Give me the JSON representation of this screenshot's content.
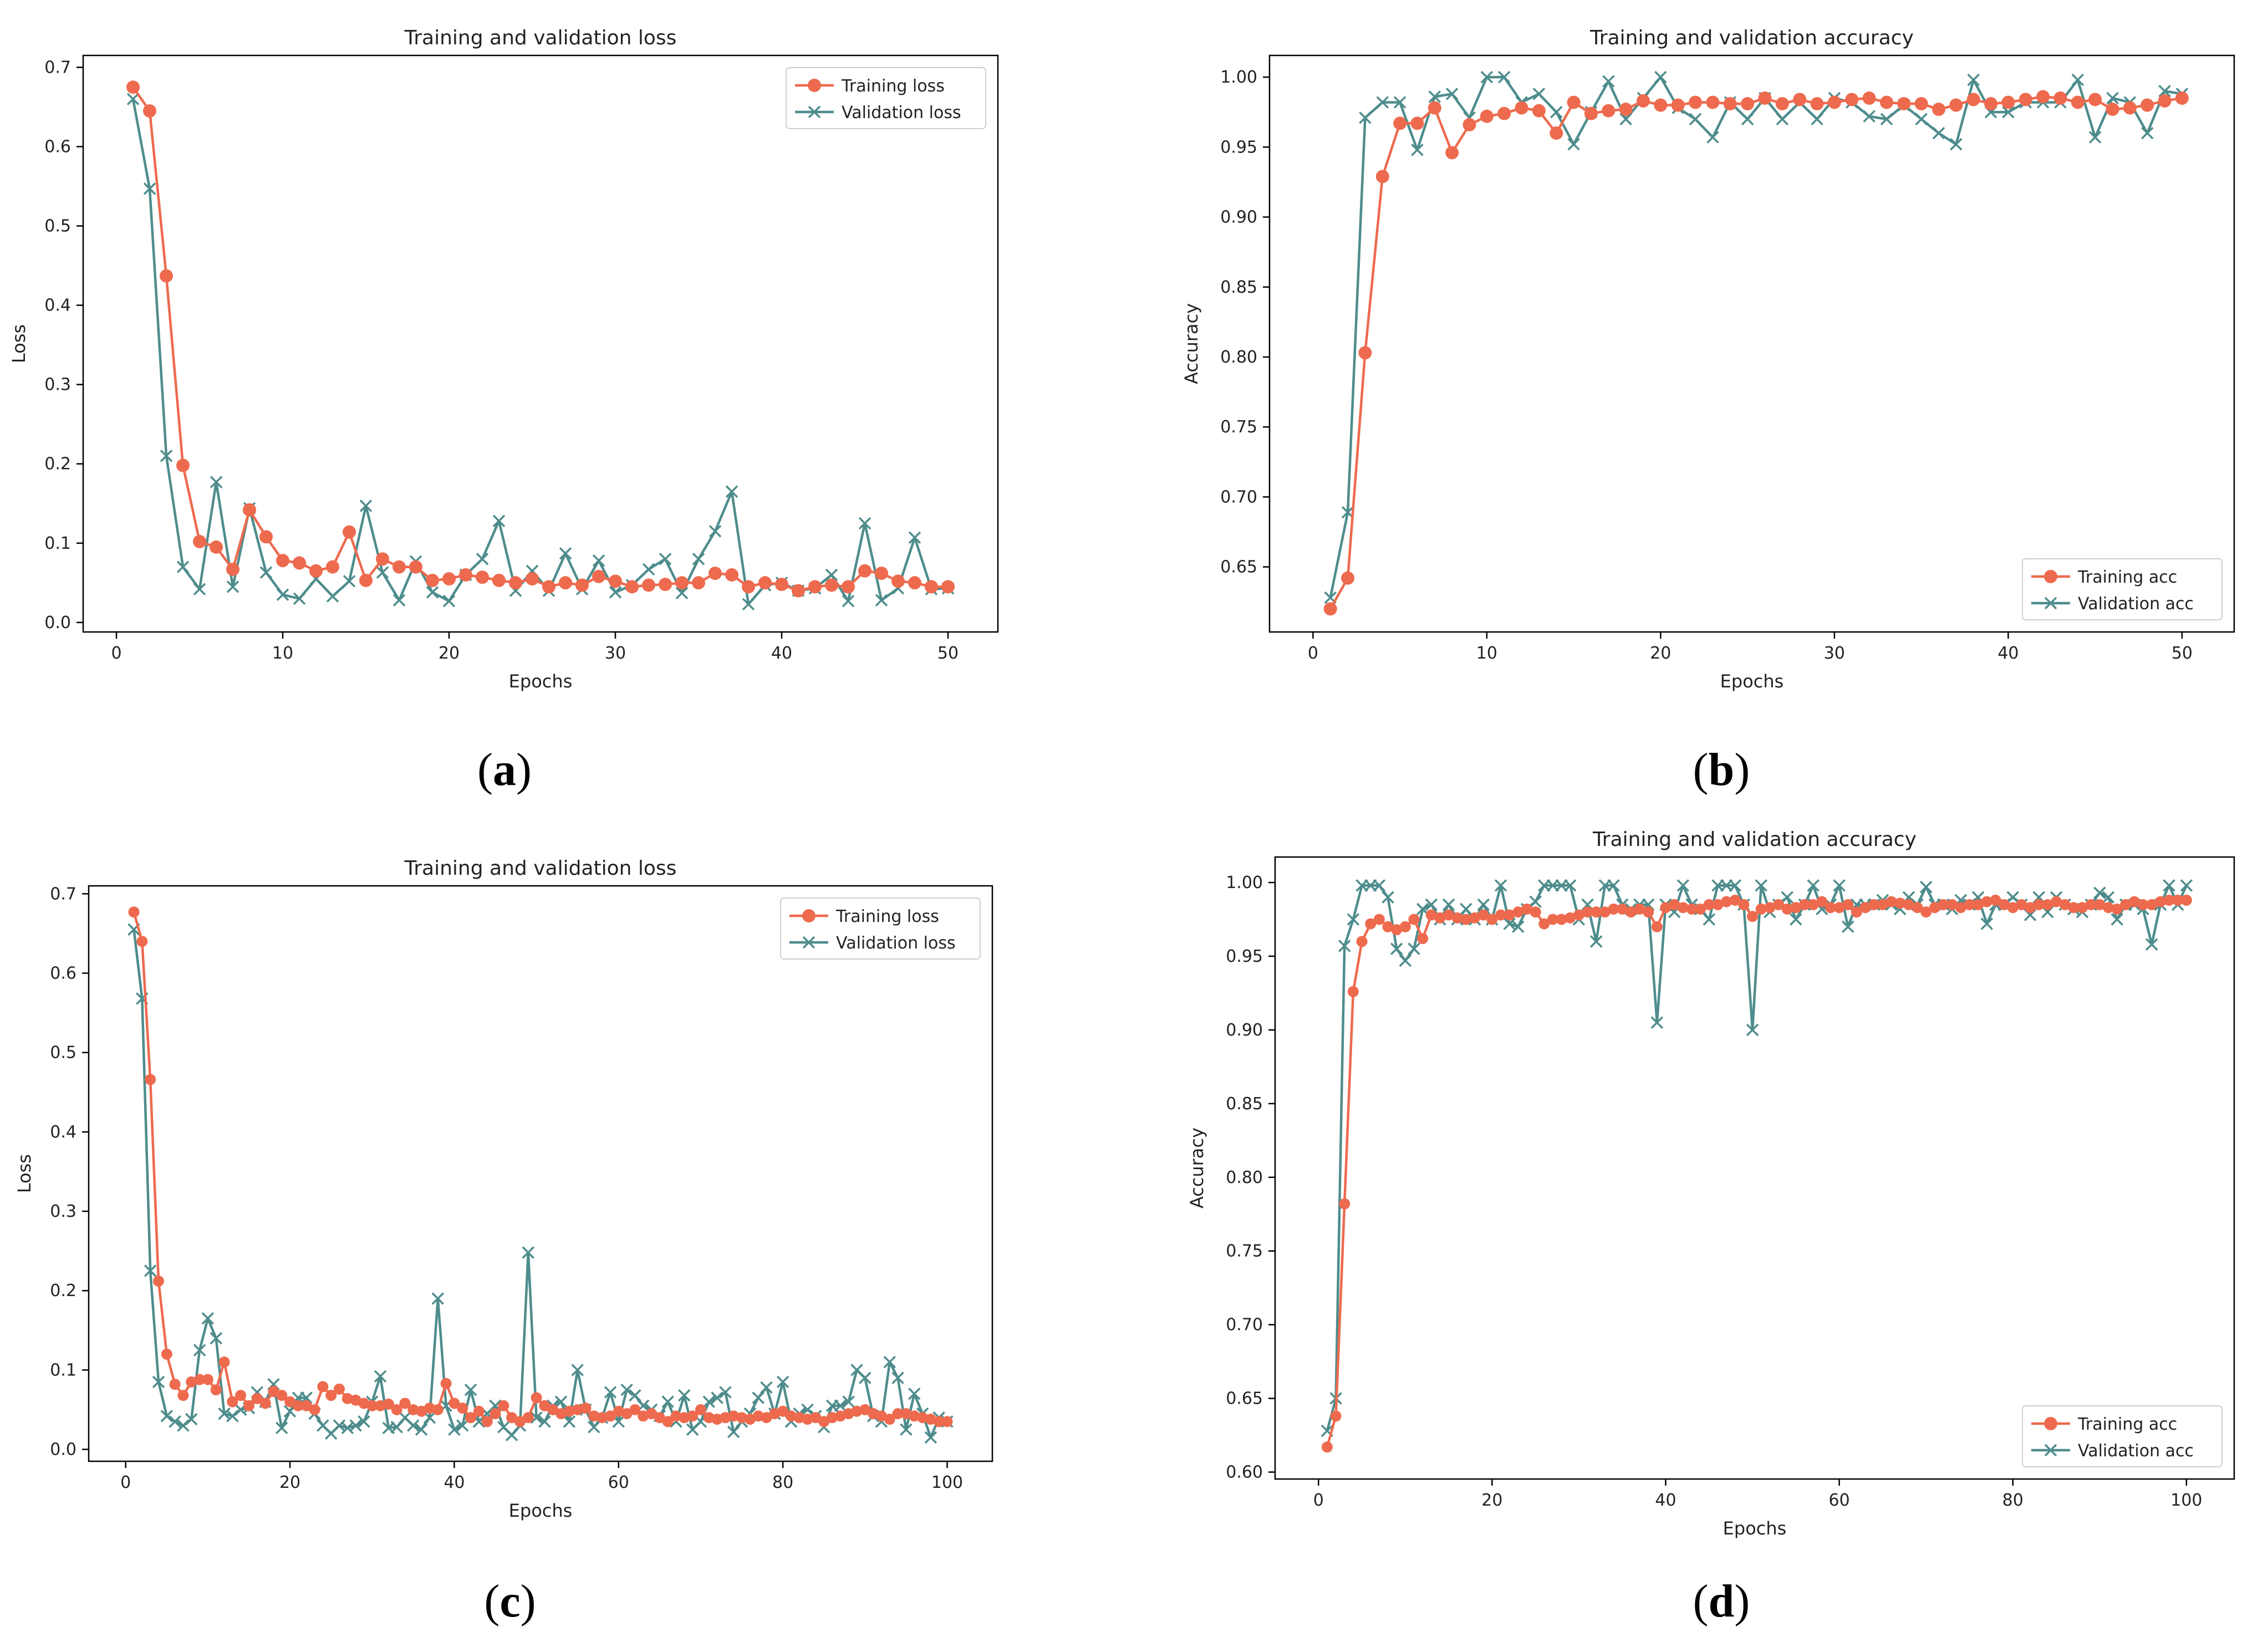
{
  "colors": {
    "train": "#EE6A4E",
    "val": "#4E8C8C",
    "axis": "#000000"
  },
  "chart_data": [
    {
      "type": "line",
      "panel": "a",
      "title": "Training and validation loss",
      "xlabel": "Epochs",
      "ylabel": "Loss",
      "xlim": [
        -2,
        53
      ],
      "ylim": [
        -0.012,
        0.715
      ],
      "xticks": [
        0,
        10,
        20,
        30,
        40,
        50
      ],
      "xtick_labels": [
        "0",
        "10",
        "20",
        "30",
        "40",
        "50"
      ],
      "yticks": [
        0,
        0.1,
        0.2,
        0.3,
        0.4,
        0.5,
        0.6,
        0.7
      ],
      "ytick_labels": [
        "0.0",
        "0.1",
        "0.2",
        "0.3",
        "0.4",
        "0.5",
        "0.6",
        "0.7"
      ],
      "legend": "top-right",
      "series": [
        {
          "name": "Training loss",
          "marker": "o",
          "values": [
            0.675,
            0.645,
            0.437,
            0.198,
            0.102,
            0.095,
            0.067,
            0.142,
            0.108,
            0.078,
            0.075,
            0.065,
            0.07,
            0.114,
            0.053,
            0.08,
            0.07,
            0.07,
            0.053,
            0.055,
            0.06,
            0.057,
            0.053,
            0.05,
            0.055,
            0.045,
            0.05,
            0.047,
            0.058,
            0.052,
            0.045,
            0.047,
            0.048,
            0.05,
            0.05,
            0.062,
            0.06,
            0.045,
            0.05,
            0.048,
            0.04,
            0.045,
            0.047,
            0.045,
            0.065,
            0.062,
            0.052,
            0.05,
            0.045,
            0.045
          ]
        },
        {
          "name": "Validation loss",
          "marker": "x",
          "values": [
            0.66,
            0.547,
            0.21,
            0.07,
            0.042,
            0.177,
            0.045,
            0.144,
            0.063,
            0.035,
            0.03,
            0.055,
            0.033,
            0.052,
            0.147,
            0.063,
            0.028,
            0.077,
            0.038,
            0.027,
            0.06,
            0.08,
            0.128,
            0.04,
            0.065,
            0.04,
            0.087,
            0.042,
            0.078,
            0.038,
            0.047,
            0.067,
            0.08,
            0.037,
            0.08,
            0.115,
            0.165,
            0.023,
            0.047,
            0.05,
            0.04,
            0.043,
            0.06,
            0.027,
            0.125,
            0.028,
            0.043,
            0.107,
            0.042,
            0.043
          ]
        }
      ]
    },
    {
      "type": "line",
      "panel": "b",
      "title": "Training and validation accuracy",
      "xlabel": "Epochs",
      "ylabel": "Accuracy",
      "xlim": [
        -2.5,
        53
      ],
      "ylim": [
        0.6035,
        1.0155
      ],
      "xticks": [
        0,
        10,
        20,
        30,
        40,
        50
      ],
      "xtick_labels": [
        "0",
        "10",
        "20",
        "30",
        "40",
        "50"
      ],
      "yticks": [
        0.65,
        0.7,
        0.75,
        0.8,
        0.85,
        0.9,
        0.95,
        1.0
      ],
      "ytick_labels": [
        "0.65",
        "0.70",
        "0.75",
        "0.80",
        "0.85",
        "0.90",
        "0.95",
        "1.00"
      ],
      "legend": "bottom-right",
      "series": [
        {
          "name": "Training acc",
          "marker": "o",
          "values": [
            0.62,
            0.642,
            0.803,
            0.929,
            0.967,
            0.967,
            0.978,
            0.946,
            0.966,
            0.972,
            0.974,
            0.978,
            0.976,
            0.96,
            0.982,
            0.974,
            0.976,
            0.977,
            0.983,
            0.98,
            0.98,
            0.982,
            0.982,
            0.981,
            0.981,
            0.985,
            0.981,
            0.984,
            0.981,
            0.982,
            0.984,
            0.985,
            0.982,
            0.981,
            0.981,
            0.977,
            0.98,
            0.984,
            0.981,
            0.982,
            0.984,
            0.986,
            0.985,
            0.982,
            0.984,
            0.977,
            0.978,
            0.98,
            0.983,
            0.985
          ]
        },
        {
          "name": "Validation acc",
          "marker": "x",
          "values": [
            0.628,
            0.689,
            0.971,
            0.982,
            0.982,
            0.948,
            0.986,
            0.988,
            0.971,
            1.0,
            1.0,
            0.982,
            0.988,
            0.975,
            0.952,
            0.975,
            0.997,
            0.97,
            0.985,
            1.0,
            0.978,
            0.97,
            0.957,
            0.982,
            0.97,
            0.985,
            0.97,
            0.982,
            0.97,
            0.985,
            0.982,
            0.972,
            0.97,
            0.98,
            0.97,
            0.96,
            0.952,
            0.998,
            0.975,
            0.975,
            0.982,
            0.982,
            0.982,
            0.998,
            0.957,
            0.985,
            0.982,
            0.96,
            0.99,
            0.988
          ]
        }
      ]
    },
    {
      "type": "line",
      "panel": "c",
      "title": "Training and validation loss",
      "xlabel": "Epochs",
      "ylabel": "Loss",
      "xlim": [
        -4.5,
        105.5
      ],
      "ylim": [
        -0.015,
        0.71
      ],
      "xticks": [
        0,
        20,
        40,
        60,
        80,
        100
      ],
      "xtick_labels": [
        "0",
        "20",
        "40",
        "60",
        "80",
        "100"
      ],
      "yticks": [
        0,
        0.1,
        0.2,
        0.3,
        0.4,
        0.5,
        0.6,
        0.7
      ],
      "ytick_labels": [
        "0.0",
        "0.1",
        "0.2",
        "0.3",
        "0.4",
        "0.5",
        "0.6",
        "0.7"
      ],
      "legend": "top-right",
      "series": [
        {
          "name": "Training loss",
          "marker": "o",
          "values": [
            0.677,
            0.64,
            0.466,
            0.212,
            0.12,
            0.082,
            0.068,
            0.085,
            0.088,
            0.088,
            0.075,
            0.11,
            0.06,
            0.068,
            0.055,
            0.064,
            0.058,
            0.073,
            0.068,
            0.06,
            0.055,
            0.055,
            0.05,
            0.079,
            0.068,
            0.076,
            0.064,
            0.062,
            0.058,
            0.055,
            0.055,
            0.057,
            0.05,
            0.058,
            0.05,
            0.048,
            0.052,
            0.05,
            0.083,
            0.058,
            0.052,
            0.04,
            0.048,
            0.035,
            0.045,
            0.055,
            0.04,
            0.035,
            0.04,
            0.065,
            0.055,
            0.05,
            0.045,
            0.048,
            0.05,
            0.052,
            0.042,
            0.04,
            0.042,
            0.048,
            0.045,
            0.05,
            0.042,
            0.045,
            0.04,
            0.035,
            0.042,
            0.04,
            0.042,
            0.05,
            0.04,
            0.038,
            0.04,
            0.042,
            0.04,
            0.038,
            0.042,
            0.04,
            0.045,
            0.048,
            0.042,
            0.04,
            0.038,
            0.04,
            0.035,
            0.04,
            0.042,
            0.045,
            0.048,
            0.05,
            0.045,
            0.042,
            0.038,
            0.045,
            0.045,
            0.042,
            0.04,
            0.038,
            0.035,
            0.035
          ]
        },
        {
          "name": "Validation loss",
          "marker": "x",
          "values": [
            0.655,
            0.568,
            0.225,
            0.085,
            0.042,
            0.035,
            0.03,
            0.038,
            0.125,
            0.165,
            0.14,
            0.045,
            0.042,
            0.05,
            0.052,
            0.072,
            0.06,
            0.082,
            0.027,
            0.048,
            0.065,
            0.065,
            0.045,
            0.03,
            0.02,
            0.03,
            0.027,
            0.03,
            0.035,
            0.06,
            0.092,
            0.027,
            0.028,
            0.04,
            0.03,
            0.025,
            0.04,
            0.19,
            0.055,
            0.025,
            0.03,
            0.075,
            0.035,
            0.045,
            0.055,
            0.028,
            0.018,
            0.03,
            0.248,
            0.04,
            0.035,
            0.055,
            0.06,
            0.035,
            0.1,
            0.05,
            0.028,
            0.04,
            0.072,
            0.035,
            0.075,
            0.068,
            0.055,
            0.05,
            0.042,
            0.06,
            0.035,
            0.068,
            0.025,
            0.035,
            0.06,
            0.065,
            0.072,
            0.022,
            0.035,
            0.045,
            0.065,
            0.078,
            0.045,
            0.085,
            0.035,
            0.045,
            0.05,
            0.042,
            0.028,
            0.055,
            0.055,
            0.06,
            0.1,
            0.09,
            0.042,
            0.035,
            0.11,
            0.09,
            0.025,
            0.07,
            0.045,
            0.015,
            0.04,
            0.035
          ]
        }
      ]
    },
    {
      "type": "line",
      "panel": "d",
      "title": "Training and validation accuracy",
      "xlabel": "Epochs",
      "ylabel": "Accuracy",
      "xlim": [
        -5,
        105.5
      ],
      "ylim": [
        0.5953,
        1.0173
      ],
      "xticks": [
        0,
        20,
        40,
        60,
        80,
        100
      ],
      "xtick_labels": [
        "0",
        "20",
        "40",
        "60",
        "80",
        "100"
      ],
      "yticks": [
        0.6,
        0.65,
        0.7,
        0.75,
        0.8,
        0.85,
        0.9,
        0.95,
        1.0
      ],
      "ytick_labels": [
        "0.60",
        "0.65",
        "0.70",
        "0.75",
        "0.80",
        "0.85",
        "0.90",
        "0.95",
        "1.00"
      ],
      "legend": "bottom-right",
      "series": [
        {
          "name": "Training acc",
          "marker": "o",
          "values": [
            0.617,
            0.638,
            0.782,
            0.926,
            0.96,
            0.972,
            0.975,
            0.97,
            0.968,
            0.97,
            0.975,
            0.962,
            0.978,
            0.976,
            0.978,
            0.976,
            0.975,
            0.976,
            0.978,
            0.975,
            0.978,
            0.978,
            0.98,
            0.982,
            0.98,
            0.972,
            0.975,
            0.975,
            0.976,
            0.978,
            0.98,
            0.98,
            0.98,
            0.982,
            0.982,
            0.98,
            0.982,
            0.98,
            0.97,
            0.983,
            0.985,
            0.983,
            0.982,
            0.982,
            0.985,
            0.985,
            0.987,
            0.988,
            0.985,
            0.977,
            0.982,
            0.983,
            0.985,
            0.982,
            0.983,
            0.985,
            0.985,
            0.987,
            0.983,
            0.983,
            0.985,
            0.98,
            0.983,
            0.985,
            0.985,
            0.987,
            0.986,
            0.985,
            0.983,
            0.98,
            0.983,
            0.985,
            0.985,
            0.983,
            0.985,
            0.985,
            0.987,
            0.988,
            0.985,
            0.983,
            0.985,
            0.983,
            0.985,
            0.985,
            0.987,
            0.985,
            0.983,
            0.983,
            0.985,
            0.985,
            0.983,
            0.982,
            0.985,
            0.987,
            0.985,
            0.985,
            0.987,
            0.988,
            0.988,
            0.988
          ]
        },
        {
          "name": "Validation acc",
          "marker": "x",
          "values": [
            0.628,
            0.65,
            0.957,
            0.975,
            0.998,
            0.998,
            0.998,
            0.99,
            0.955,
            0.947,
            0.955,
            0.982,
            0.985,
            0.975,
            0.985,
            0.975,
            0.982,
            0.975,
            0.985,
            0.975,
            0.998,
            0.972,
            0.97,
            0.982,
            0.987,
            0.998,
            0.998,
            0.998,
            0.998,
            0.975,
            0.985,
            0.96,
            0.998,
            0.998,
            0.985,
            0.982,
            0.985,
            0.985,
            0.905,
            0.985,
            0.98,
            0.998,
            0.985,
            0.982,
            0.975,
            0.998,
            0.998,
            0.998,
            0.985,
            0.9,
            0.998,
            0.98,
            0.985,
            0.99,
            0.975,
            0.985,
            0.998,
            0.982,
            0.985,
            0.998,
            0.97,
            0.985,
            0.985,
            0.985,
            0.988,
            0.985,
            0.982,
            0.99,
            0.985,
            0.997,
            0.985,
            0.985,
            0.982,
            0.988,
            0.985,
            0.99,
            0.972,
            0.985,
            0.985,
            0.99,
            0.985,
            0.978,
            0.99,
            0.98,
            0.99,
            0.985,
            0.982,
            0.98,
            0.985,
            0.993,
            0.99,
            0.975,
            0.985,
            0.985,
            0.982,
            0.958,
            0.985,
            0.998,
            0.985,
            0.998
          ]
        }
      ]
    }
  ],
  "captions": [
    "a",
    "b",
    "c",
    "d"
  ]
}
